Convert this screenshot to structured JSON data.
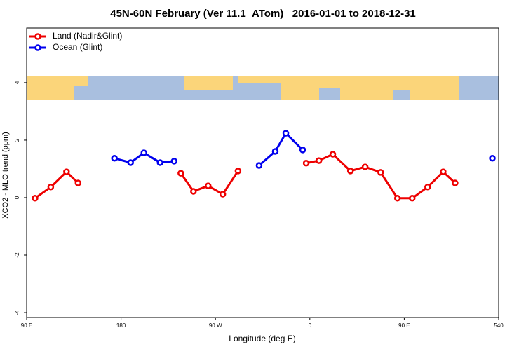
{
  "chart_data": {
    "type": "line",
    "title": "45N-60N February (Ver 11.1_ATom)   2016-01-01 to 2018-12-31",
    "x_label": "Longitude (deg E)",
    "y_label": "XCO2 - MLO trend (ppm)",
    "xlim": [
      90,
      540
    ],
    "ylim": [
      -4.17,
      5.9
    ],
    "xticks": [
      {
        "value": 90,
        "label": "90 E"
      },
      180,
      {
        "value": 270,
        "label": "90 W"
      },
      {
        "value": 360,
        "label": "0"
      },
      {
        "value": 450,
        "label": "90 E"
      },
      540
    ],
    "yticks": [
      -4,
      -2,
      0,
      2,
      4
    ],
    "legend": "top-left",
    "series": [
      {
        "name": "Land (Nadir&Glint)",
        "color": "#ee0000",
        "x": [
          98,
          113,
          128,
          139,
          null,
          237,
          249,
          263,
          277,
          291.5,
          null,
          356.5,
          368.6,
          381.9,
          398.7,
          412.7,
          427.5,
          443.5,
          457.6,
          472.3,
          487.1,
          498.5
        ],
        "values": [
          -0.02,
          0.37,
          0.9,
          0.51,
          null,
          0.85,
          0.22,
          0.41,
          0.12,
          0.93,
          null,
          1.2,
          1.29,
          1.51,
          0.93,
          1.07,
          0.88,
          -0.02,
          -0.02,
          0.37,
          0.9,
          0.51
        ]
      },
      {
        "name": "Ocean (Glint)",
        "color": "#0000ee",
        "x": [
          173.7,
          189.1,
          201.8,
          217.2,
          230.6,
          null,
          311.6,
          327,
          337.1,
          353.2,
          null,
          534
        ],
        "values": [
          1.37,
          1.22,
          1.56,
          1.22,
          1.27,
          null,
          1.12,
          1.61,
          2.24,
          1.66,
          null,
          1.37
        ]
      }
    ]
  }
}
